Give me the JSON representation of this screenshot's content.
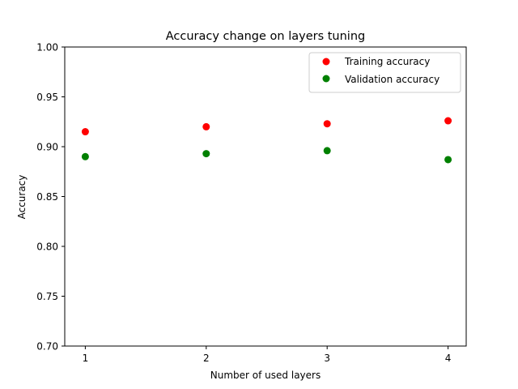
{
  "chart_data": {
    "type": "scatter",
    "title": "Accuracy change on layers tuning",
    "xlabel": "Number of used layers",
    "ylabel": "Accuracy",
    "x": [
      1,
      2,
      3,
      4
    ],
    "xlim": [
      0.83,
      4.15
    ],
    "ylim": [
      0.7,
      1.0
    ],
    "xticks": [
      1,
      2,
      3,
      4
    ],
    "xtick_labels": [
      "1",
      "2",
      "3",
      "4"
    ],
    "yticks": [
      0.7,
      0.75,
      0.8,
      0.85,
      0.9,
      0.95,
      1.0
    ],
    "ytick_labels": [
      "0.70",
      "0.75",
      "0.80",
      "0.85",
      "0.90",
      "0.95",
      "1.00"
    ],
    "grid": false,
    "legend_position": "top-right",
    "series": [
      {
        "name": "Training accuracy",
        "color": "#ff0000",
        "values": [
          0.915,
          0.92,
          0.923,
          0.926
        ]
      },
      {
        "name": "Validation accuracy",
        "color": "#008000",
        "values": [
          0.89,
          0.893,
          0.896,
          0.887
        ]
      }
    ]
  }
}
